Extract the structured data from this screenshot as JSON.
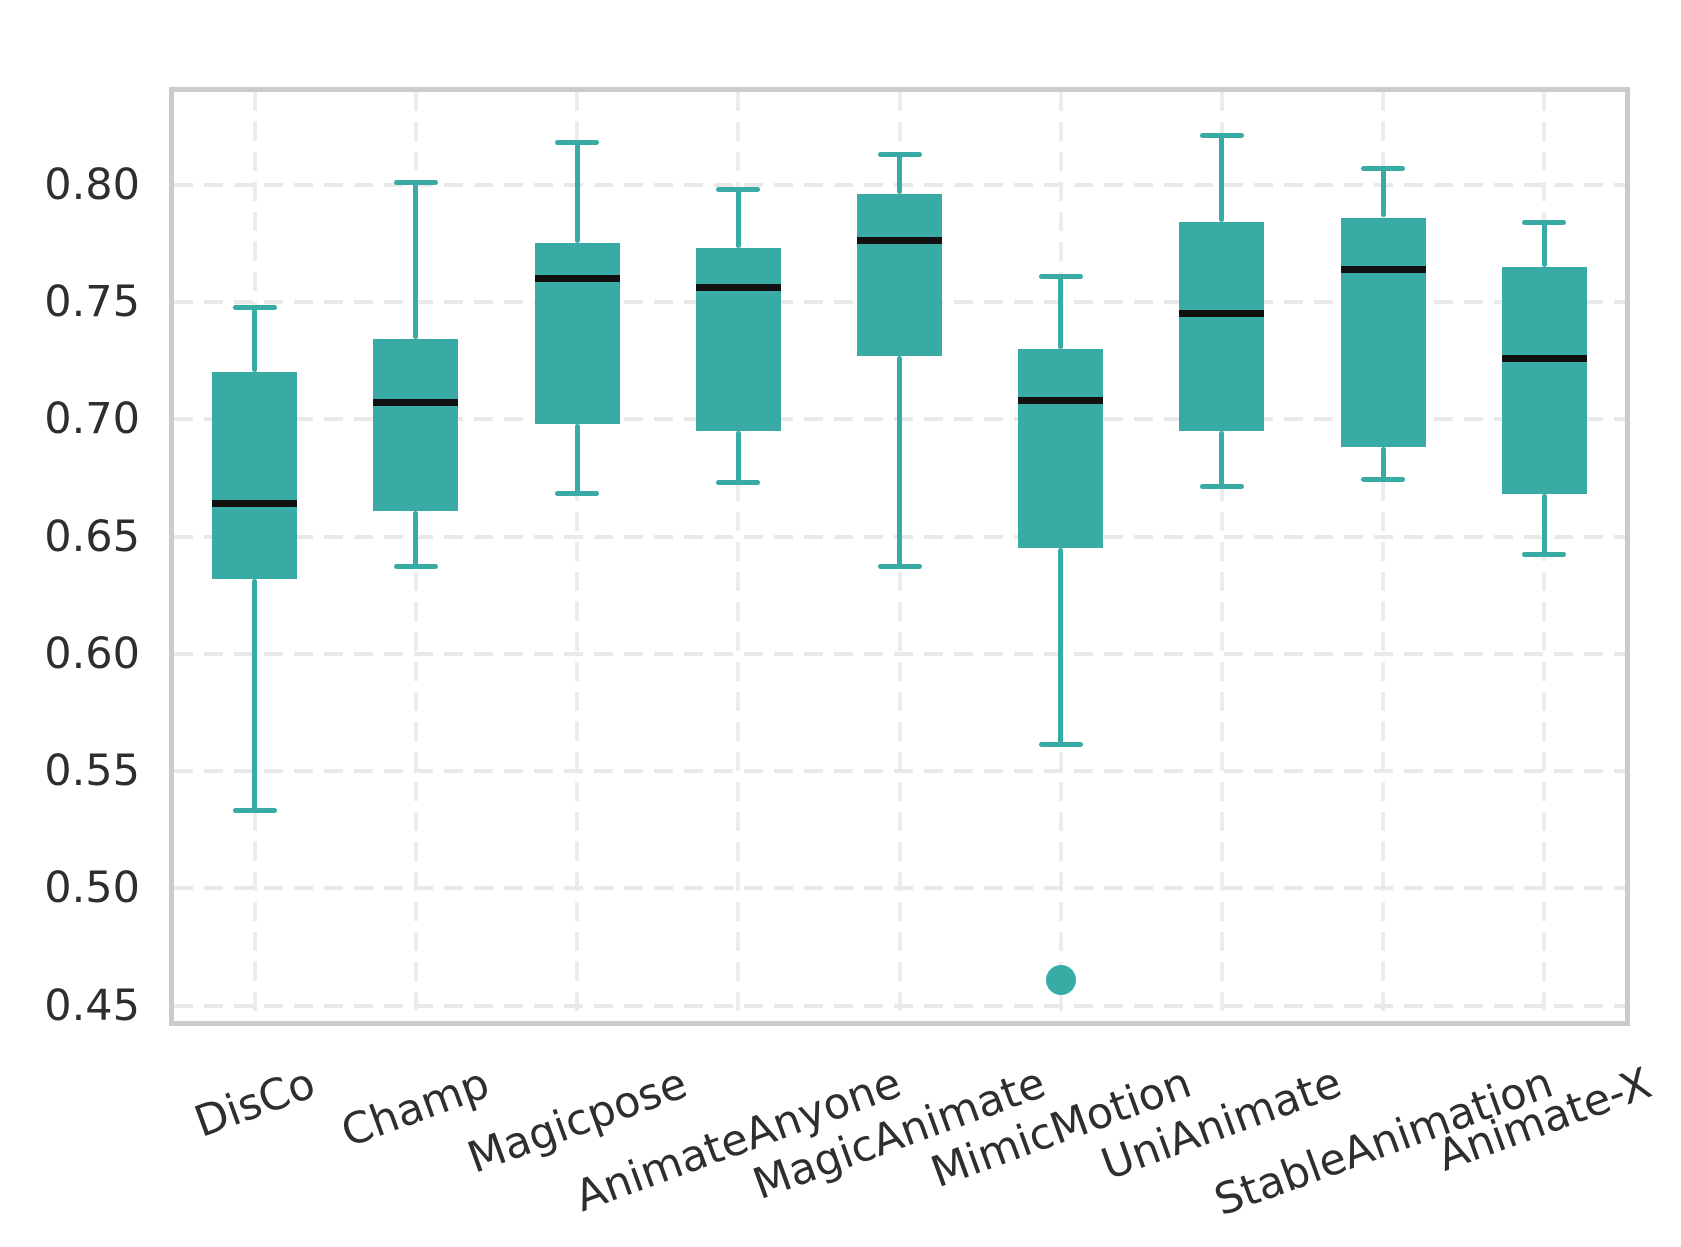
{
  "figure": {
    "background": "#ffffff"
  },
  "chart_data": {
    "type": "box",
    "title": "",
    "xlabel": "",
    "ylabel": "",
    "legend": "none",
    "grid": "dashed, horizontal at y-ticks and vertical at category centers",
    "categories": [
      "DisCo",
      "Champ",
      "Magicpose",
      "AnimateAnyone",
      "MagicAnimate",
      "MimicMotion",
      "UniAnimate",
      "StableAnimation",
      "Animate-X"
    ],
    "series": [
      {
        "name": "DisCo",
        "whisker_low": 0.533,
        "q1": 0.632,
        "median": 0.664,
        "q3": 0.72,
        "whisker_high": 0.748,
        "outliers": []
      },
      {
        "name": "Champ",
        "whisker_low": 0.637,
        "q1": 0.661,
        "median": 0.707,
        "q3": 0.734,
        "whisker_high": 0.801,
        "outliers": []
      },
      {
        "name": "Magicpose",
        "whisker_low": 0.668,
        "q1": 0.698,
        "median": 0.76,
        "q3": 0.775,
        "whisker_high": 0.818,
        "outliers": []
      },
      {
        "name": "AnimateAnyone",
        "whisker_low": 0.673,
        "q1": 0.695,
        "median": 0.756,
        "q3": 0.773,
        "whisker_high": 0.798,
        "outliers": []
      },
      {
        "name": "MagicAnimate",
        "whisker_low": 0.637,
        "q1": 0.727,
        "median": 0.776,
        "q3": 0.796,
        "whisker_high": 0.813,
        "outliers": []
      },
      {
        "name": "MimicMotion",
        "whisker_low": 0.561,
        "q1": 0.645,
        "median": 0.708,
        "q3": 0.73,
        "whisker_high": 0.761,
        "outliers": [
          0.461
        ]
      },
      {
        "name": "UniAnimate",
        "whisker_low": 0.671,
        "q1": 0.695,
        "median": 0.745,
        "q3": 0.784,
        "whisker_high": 0.821,
        "outliers": []
      },
      {
        "name": "StableAnimation",
        "whisker_low": 0.674,
        "q1": 0.688,
        "median": 0.764,
        "q3": 0.786,
        "whisker_high": 0.807,
        "outliers": []
      },
      {
        "name": "Animate-X",
        "whisker_low": 0.642,
        "q1": 0.668,
        "median": 0.726,
        "q3": 0.765,
        "whisker_high": 0.784,
        "outliers": []
      }
    ],
    "ylim": [
      0.4435,
      0.8395
    ],
    "yticks": {
      "values": [
        0.45,
        0.5,
        0.55,
        0.6,
        0.65,
        0.7,
        0.75,
        0.8
      ],
      "labels": [
        "0.45",
        "0.50",
        "0.55",
        "0.60",
        "0.65",
        "0.70",
        "0.75",
        "0.80"
      ]
    },
    "x_tick_rotation_deg": 20,
    "colors": {
      "box_fill": "#37aba4",
      "whisker": "#37aba4",
      "cap": "#37aba4",
      "median": "#111111",
      "outlier": "#37aba4",
      "grid_h": "#e9e9e9",
      "grid_v": "#ececec",
      "spine": "#cbcbcb",
      "tick_text": "#2e2e2e",
      "background": "#ffffff"
    }
  }
}
